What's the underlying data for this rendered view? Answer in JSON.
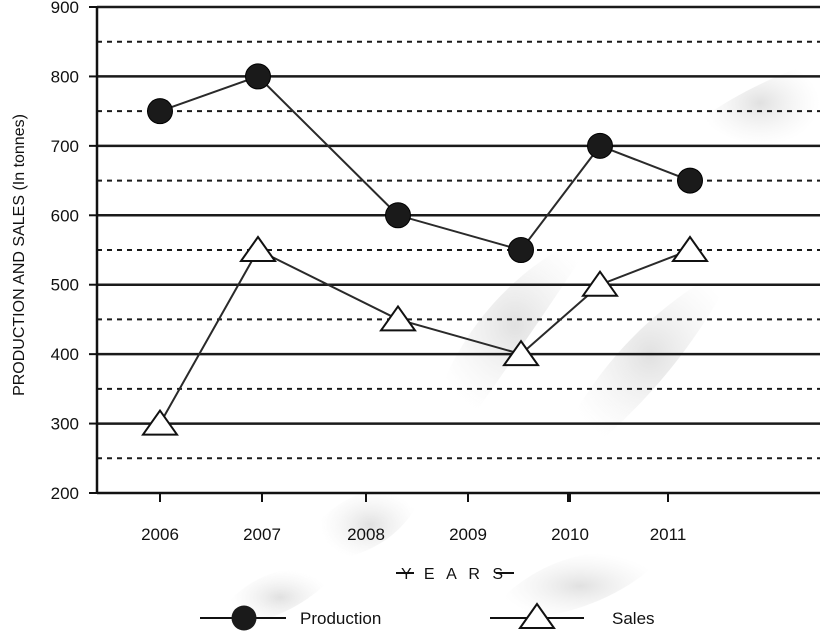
{
  "chart_data": {
    "type": "line",
    "categories": [
      "2006",
      "2007",
      "2008",
      "2009",
      "2010",
      "2011"
    ],
    "series": [
      {
        "name": "Production",
        "marker": "circle",
        "values": [
          750,
          800,
          600,
          550,
          700,
          650
        ]
      },
      {
        "name": "Sales",
        "marker": "triangle",
        "values": [
          300,
          550,
          450,
          400,
          500,
          550
        ]
      }
    ],
    "xlabel": "YEARS",
    "ylabel": "PRODUCTION AND SALES (In tonnes)",
    "ylim": [
      200,
      900
    ],
    "yticks": [
      200,
      300,
      400,
      500,
      600,
      700,
      800,
      900
    ],
    "grid": {
      "solid_every": 100,
      "dashed_every": 50
    },
    "legend": "bottom-center",
    "colors": {
      "line": "#2a2a2a",
      "marker_fill_production": "#1a1a1a",
      "marker_fill_sales": "#ffffff",
      "grid": "#1a1a1a"
    }
  }
}
